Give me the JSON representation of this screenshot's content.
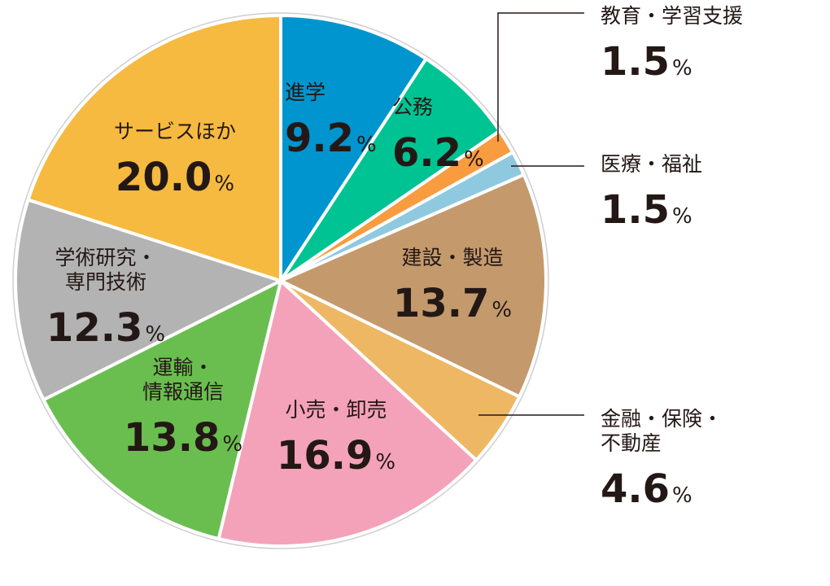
{
  "chart_data": {
    "type": "pie",
    "start": "top",
    "direction": "clockwise",
    "unit": "%",
    "slices": [
      {
        "label_lines": [
          "進学"
        ],
        "value": 9.2,
        "color": "#0095CE"
      },
      {
        "label_lines": [
          "公務"
        ],
        "value": 6.2,
        "color": "#00C393"
      },
      {
        "label_lines": [
          "教育・学習支援"
        ],
        "value": 1.5,
        "color": "#F89C3F"
      },
      {
        "label_lines": [
          "医療・福祉"
        ],
        "value": 1.5,
        "color": "#8FC9E0"
      },
      {
        "label_lines": [
          "建設・製造"
        ],
        "value": 13.7,
        "color": "#C49A6C"
      },
      {
        "label_lines": [
          "金融・保険・",
          "不動産"
        ],
        "value": 4.6,
        "color": "#EDB764"
      },
      {
        "label_lines": [
          "小売・卸売"
        ],
        "value": 16.9,
        "color": "#F4A2B9"
      },
      {
        "label_lines": [
          "運輸・",
          "情報通信"
        ],
        "value": 13.8,
        "color": "#6ABE4F"
      },
      {
        "label_lines": [
          "学術研究・",
          "専門技術"
        ],
        "value": 12.3,
        "color": "#B3B3B3"
      },
      {
        "label_lines": [
          "サービスほか"
        ],
        "value": 20.0,
        "color": "#F6BA40"
      }
    ]
  }
}
